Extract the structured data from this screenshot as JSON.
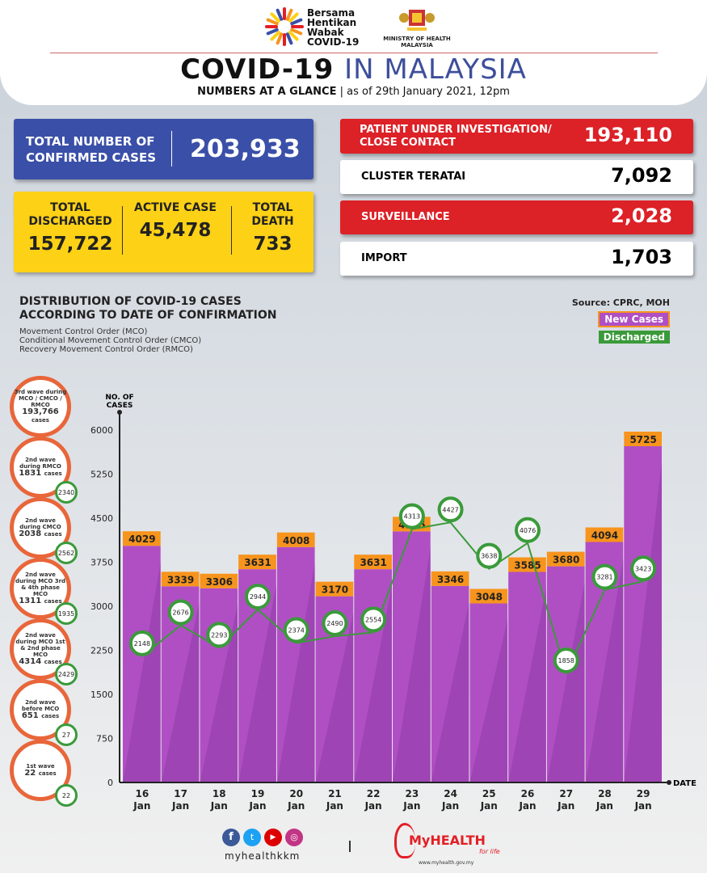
{
  "header": {
    "campaign_logo": [
      "Bersama",
      "Hentikan",
      "Wabak",
      "COVID-19"
    ],
    "ministry": "MINISTRY OF HEALTH MALAYSIA",
    "title_bold": "COVID-19",
    "title_light": "IN MALAYSIA",
    "subtitle_bold": "NUMBERS AT A GLANCE",
    "subtitle_date": "as of 29th January 2021, 12pm"
  },
  "confirmed": {
    "label": "TOTAL NUMBER OF CONFIRMED CASES",
    "value": "203,933"
  },
  "summary": [
    {
      "label": "TOTAL DISCHARGED",
      "value": "157,722"
    },
    {
      "label": "ACTIVE CASE",
      "value": "45,478"
    },
    {
      "label": "TOTAL DEATH",
      "value": "733"
    }
  ],
  "categories": [
    {
      "label": "PATIENT UNDER INVESTIGATION/ CLOSE CONTACT",
      "value": "193,110"
    },
    {
      "label": "CLUSTER TERATAI",
      "value": "7,092"
    },
    {
      "label": "SURVEILLANCE",
      "value": "2,028"
    },
    {
      "label": "IMPORT",
      "value": "1,703"
    }
  ],
  "section": {
    "title": "DISTRIBUTION OF COVID-19 CASES ACCORDING TO DATE OF CONFIRMATION",
    "notes": [
      "Movement Control Order (MCO)",
      "Conditional Movement Control Order (CMCO)",
      "Recovery Movement Control Order (RMCO)"
    ],
    "source": "Source: CPRC, MOH"
  },
  "waves": [
    {
      "text": "3rd wave during MCO / CMCO / RMCO",
      "cases": "193,766",
      "unit": "cases",
      "discharged": ""
    },
    {
      "text": "2nd wave during RMCO",
      "cases": "1831",
      "unit": "cases",
      "discharged": "2340"
    },
    {
      "text": "2nd wave during CMCO",
      "cases": "2038",
      "unit": "cases",
      "discharged": "2562"
    },
    {
      "text": "2nd wave during MCO 3rd & 4th phase MCO",
      "cases": "1311",
      "unit": "cases",
      "discharged": "1935"
    },
    {
      "text": "2nd wave during MCO 1st & 2nd phase MCO",
      "cases": "4314",
      "unit": "cases",
      "discharged": "2429"
    },
    {
      "text": "2nd wave before MCO",
      "cases": "651",
      "unit": "cases",
      "discharged": "27"
    },
    {
      "text": "1st wave",
      "cases": "22",
      "unit": "cases",
      "discharged": "22"
    }
  ],
  "chart_data": {
    "type": "bar",
    "title": "DISTRIBUTION OF COVID-19 CASES ACCORDING TO DATE OF CONFIRMATION",
    "ylabel": "NO. OF CASES",
    "xlabel": "DATE",
    "ylim": [
      0,
      6000
    ],
    "yticks": [
      0,
      750,
      1500,
      2250,
      3000,
      3750,
      4500,
      5250,
      6000
    ],
    "categories": [
      [
        "16",
        "Jan"
      ],
      [
        "17",
        "Jan"
      ],
      [
        "18",
        "Jan"
      ],
      [
        "19",
        "Jan"
      ],
      [
        "20",
        "Jan"
      ],
      [
        "21",
        "Jan"
      ],
      [
        "22",
        "Jan"
      ],
      [
        "23",
        "Jan"
      ],
      [
        "24",
        "Jan"
      ],
      [
        "25",
        "Jan"
      ],
      [
        "26",
        "Jan"
      ],
      [
        "27",
        "Jan"
      ],
      [
        "28",
        "Jan"
      ],
      [
        "29",
        "Jan"
      ]
    ],
    "series": [
      {
        "name": "New Cases",
        "type": "bar",
        "color": "#b04fc4",
        "values": [
          4029,
          3339,
          3306,
          3631,
          4008,
          3170,
          3631,
          4275,
          3346,
          3048,
          3585,
          3680,
          4094,
          5725
        ]
      },
      {
        "name": "Discharged",
        "type": "line",
        "color": "#3a9a3a",
        "values": [
          2148,
          2676,
          2293,
          2944,
          2374,
          2490,
          2554,
          4313,
          4427,
          3638,
          4076,
          1858,
          3281,
          3423
        ]
      }
    ],
    "legend": "top-right"
  },
  "footer": {
    "handle": "myhealthkkm",
    "brand": "MyHEALTH",
    "tagline": "for life",
    "url": "www.myhealth.gov.my"
  }
}
